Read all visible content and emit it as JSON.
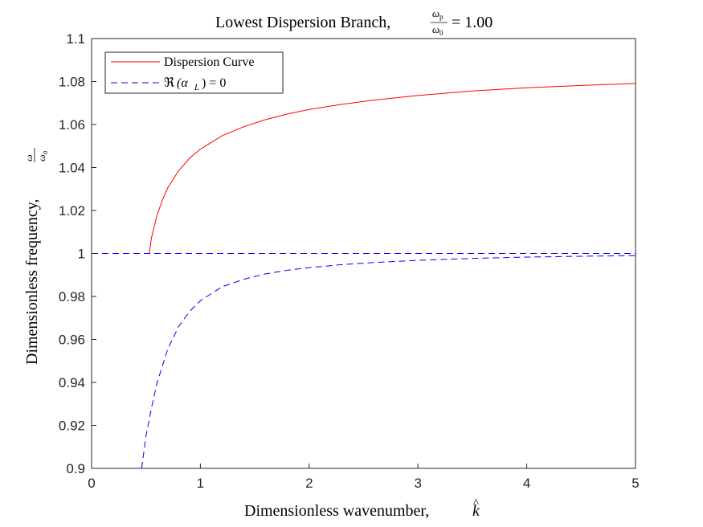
{
  "chart_data": {
    "type": "line",
    "title_text": "Lowest Dispersion Branch, ",
    "title_frac_num": "ω",
    "title_frac_num_sub": "p",
    "title_frac_den": "ω",
    "title_frac_den_sub": "0",
    "title_value": "= 1.00",
    "xlabel_text": "Dimensionless wavenumber, ",
    "xlabel_symbol": "k",
    "xlabel_hat": "^",
    "ylabel_text": "Dimensionless frequency, ",
    "ylabel_frac_num": "ω",
    "ylabel_frac_den": "ω",
    "ylabel_frac_den_sub": "0",
    "xlim": [
      0,
      5
    ],
    "ylim": [
      0.9,
      1.1
    ],
    "x_ticks": [
      "0",
      "1",
      "2",
      "3",
      "4",
      "5"
    ],
    "y_ticks": [
      "0.9",
      "0.92",
      "0.94",
      "0.96",
      "0.98",
      "1",
      "1.02",
      "1.04",
      "1.06",
      "1.08",
      "1.1"
    ],
    "grid": false,
    "legend_position": "top-left",
    "series": [
      {
        "name": "Dispersion Curve",
        "color": "#ff0000",
        "style": "solid",
        "x": [
          0.53,
          0.55,
          0.6,
          0.65,
          0.7,
          0.8,
          0.9,
          1.0,
          1.2,
          1.4,
          1.6,
          1.8,
          2.0,
          2.3,
          2.6,
          3.0,
          3.5,
          4.0,
          4.5,
          5.0
        ],
        "y": [
          1.0,
          1.0072,
          1.0175,
          1.0248,
          1.0305,
          1.0385,
          1.0443,
          1.0485,
          1.0548,
          1.059,
          1.0623,
          1.0649,
          1.067,
          1.0694,
          1.0714,
          1.0735,
          1.0756,
          1.0771,
          1.0782,
          1.0791
        ]
      },
      {
        "name_prefix": "ℜ",
        "name_body": "(α",
        "name_sub": "L",
        "name_suffix": ") = 0",
        "color": "#0000ff",
        "style": "dashed",
        "x": [
          0.46,
          0.5,
          0.55,
          0.6,
          0.7,
          0.8,
          0.9,
          1.0,
          1.2,
          1.4,
          1.6,
          1.8,
          2.0,
          2.3,
          2.6,
          3.0,
          3.5,
          4.0,
          4.5,
          5.0
        ],
        "y": [
          0.9,
          0.915,
          0.928,
          0.9395,
          0.9555,
          0.966,
          0.973,
          0.978,
          0.9845,
          0.988,
          0.9905,
          0.9922,
          0.9934,
          0.9948,
          0.9958,
          0.9968,
          0.9977,
          0.9983,
          0.9987,
          0.999
        ]
      },
      {
        "color": "#0000ff",
        "style": "dashed",
        "x": [
          0,
          5
        ],
        "y": [
          1.0,
          1.0
        ]
      }
    ]
  }
}
